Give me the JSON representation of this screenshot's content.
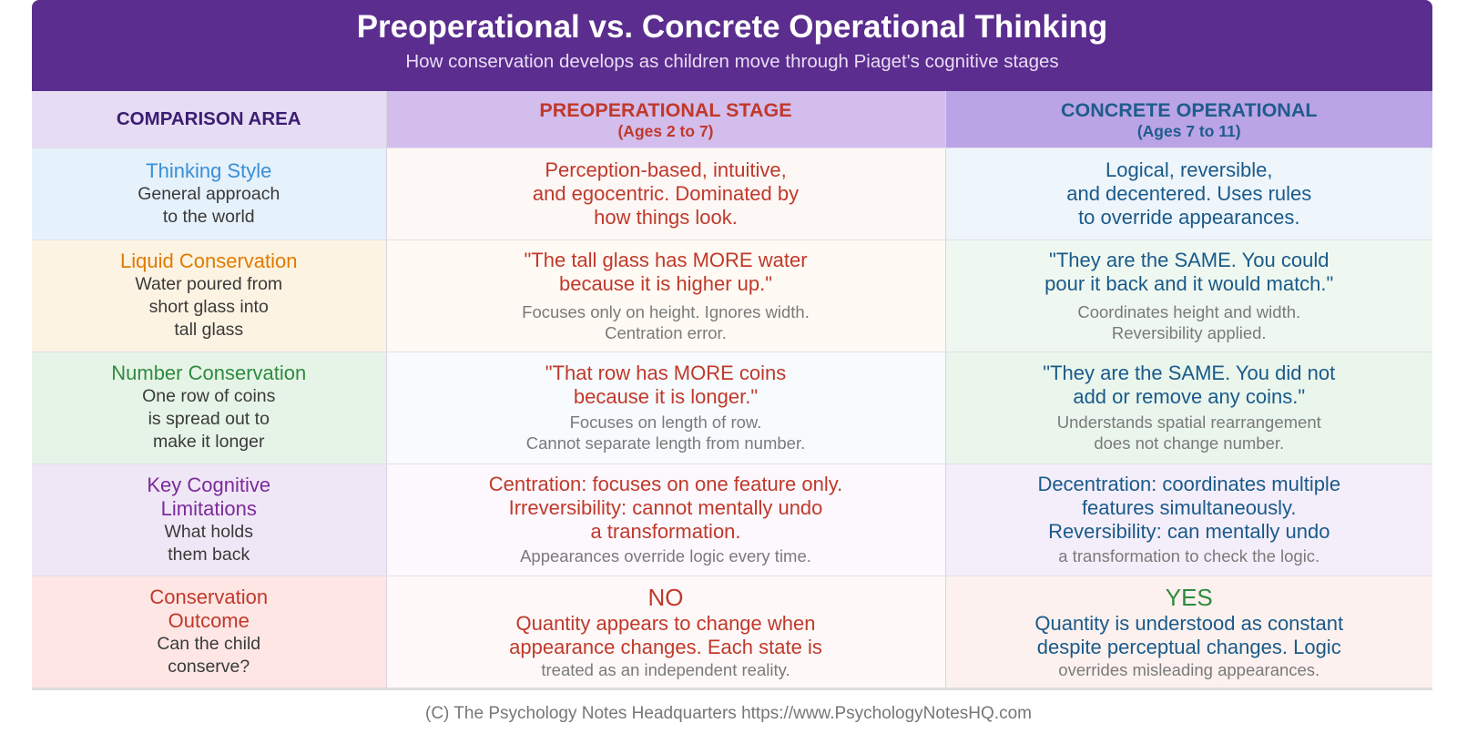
{
  "header": {
    "title": "Preoperational vs. Concrete Operational Thinking",
    "subtitle": "How conservation develops as children move through Piaget's cognitive stages"
  },
  "columns": {
    "area": "COMPARISON AREA",
    "pre": {
      "label": "PREOPERATIONAL STAGE",
      "ages": "(Ages 2 to 7)"
    },
    "con": {
      "label": "CONCRETE OPERATIONAL",
      "ages": "(Ages 7 to 11)"
    }
  },
  "rows": [
    {
      "area_title": [
        "Thinking Style"
      ],
      "area_desc": [
        "General approach",
        "to the world"
      ],
      "area_color": "#3a8fd6",
      "pre_main": [
        "Perception-based, intuitive,",
        "and egocentric. Dominated by",
        "how things look."
      ],
      "pre_note": [],
      "con_main": [
        "Logical, reversible,",
        "and decentered. Uses rules",
        "to override appearances."
      ],
      "con_note": []
    },
    {
      "area_title": [
        "Liquid Conservation"
      ],
      "area_desc": [
        "Water poured from",
        "short glass into",
        "tall glass"
      ],
      "area_color": "#e07b00",
      "pre_main": [
        "\"The tall glass has MORE water",
        "because it is higher up.\""
      ],
      "pre_note": [
        "Focuses only on height. Ignores width.",
        "Centration error."
      ],
      "con_main": [
        "\"They are the SAME. You could",
        "pour it back and it would match.\""
      ],
      "con_note": [
        "Coordinates height and width.",
        "Reversibility applied."
      ]
    },
    {
      "area_title": [
        "Number Conservation"
      ],
      "area_desc": [
        "One row of coins",
        "is spread out to",
        "make it longer"
      ],
      "area_color": "#2e8b3e",
      "pre_main": [
        "\"That row has MORE coins",
        "because it is longer.\""
      ],
      "pre_note": [
        "Focuses on length of row.",
        "Cannot separate length from number."
      ],
      "con_main": [
        "\"They are the SAME. You did not",
        "add or remove any coins.\""
      ],
      "con_note": [
        "Understands spatial rearrangement",
        "does not change number."
      ]
    },
    {
      "area_title": [
        "Key Cognitive",
        "Limitations"
      ],
      "area_desc": [
        "What holds",
        "them back"
      ],
      "area_color": "#7b2a9b",
      "pre_main": [
        "Centration: focuses on one feature only.",
        "Irreversibility: cannot mentally undo",
        "a transformation."
      ],
      "pre_note": [
        "Appearances override logic every time."
      ],
      "con_main": [
        "Decentration: coordinates multiple",
        "features simultaneously.",
        "Reversibility: can mentally undo"
      ],
      "con_note": [
        "a transformation to check the logic."
      ]
    },
    {
      "area_title": [
        "Conservation",
        "Outcome"
      ],
      "area_desc": [
        "Can the child",
        "conserve?"
      ],
      "area_color": "#c0392b",
      "pre_verdict": "NO",
      "pre_main": [
        "Quantity appears to change when",
        "appearance changes. Each state is"
      ],
      "pre_note": [
        "treated as an independent reality."
      ],
      "con_verdict": "YES",
      "con_main": [
        "Quantity is understood as constant",
        "despite perceptual changes. Logic"
      ],
      "con_note": [
        "overrides misleading appearances."
      ]
    }
  ],
  "footer": "(C) The Psychology Notes Headquarters  https://www.PsychologyNotesHQ.com"
}
